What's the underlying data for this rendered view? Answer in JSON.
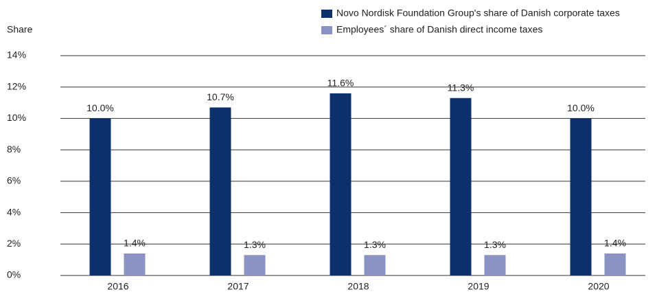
{
  "chart_data": {
    "type": "bar",
    "y_axis_label": "Share",
    "categories": [
      "2016",
      "2017",
      "2018",
      "2019",
      "2020"
    ],
    "series": [
      {
        "name": "Novo Nordisk Foundation Group's share of Danish corporate taxes",
        "color": "#0b306b",
        "values": [
          10.0,
          10.7,
          11.6,
          11.3,
          10.0
        ],
        "value_labels": [
          "10.0%",
          "10.7%",
          "11.6%",
          "11.3%",
          "10.0%"
        ]
      },
      {
        "name": "Employees´ share of Danish direct income taxes",
        "color": "#8a93c3",
        "values": [
          1.4,
          1.3,
          1.3,
          1.3,
          1.4
        ],
        "value_labels": [
          "1.4%",
          "1.3%",
          "1.3%",
          "1.3%",
          "1.4%"
        ]
      }
    ],
    "ylim": [
      0,
      14
    ],
    "yticks": [
      {
        "value": 0,
        "label": "0%"
      },
      {
        "value": 2,
        "label": "2%"
      },
      {
        "value": 4,
        "label": "4%"
      },
      {
        "value": 6,
        "label": "6%"
      },
      {
        "value": 8,
        "label": "8%"
      },
      {
        "value": 10,
        "label": "10%"
      },
      {
        "value": 12,
        "label": "12%"
      },
      {
        "value": 14,
        "label": "14%"
      }
    ],
    "grid": true,
    "legend": "top-right"
  }
}
